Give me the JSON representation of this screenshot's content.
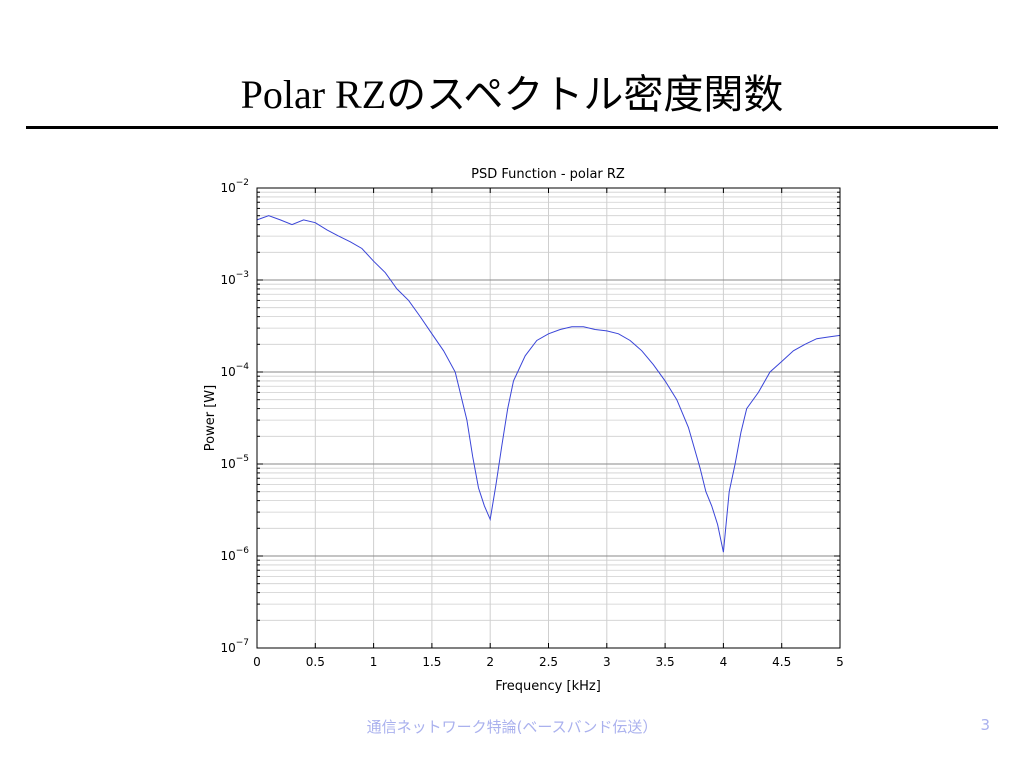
{
  "slide": {
    "title": "Polar RZのスペクトル密度関数",
    "footer": "通信ネットワーク特論(ベースバンド伝送）",
    "page_number": "3"
  },
  "colors": {
    "series": "#3a45d8",
    "grid": "#cfcfcf",
    "axis": "#000000",
    "footer": "#aab1ee"
  },
  "chart_data": {
    "type": "line",
    "title": "PSD Function - polar RZ",
    "xlabel": "Frequency [kHz]",
    "ylabel": "Power [W]",
    "xlim": [
      0,
      5
    ],
    "ylim": [
      1e-07,
      0.01
    ],
    "yscale": "log",
    "grid": true,
    "x_ticks": [
      "0",
      "0.5",
      "1",
      "1.5",
      "2",
      "2.5",
      "3",
      "3.5",
      "4",
      "4.5",
      "5"
    ],
    "y_ticks": [
      {
        "base": "10",
        "exp": "−2"
      },
      {
        "base": "10",
        "exp": "−3"
      },
      {
        "base": "10",
        "exp": "−4"
      },
      {
        "base": "10",
        "exp": "−5"
      },
      {
        "base": "10",
        "exp": "−6"
      },
      {
        "base": "10",
        "exp": "−7"
      }
    ],
    "series": [
      {
        "x": [
          0,
          0.1,
          0.2,
          0.3,
          0.4,
          0.5,
          0.6,
          0.7,
          0.8,
          0.9,
          1.0,
          1.1,
          1.2,
          1.3,
          1.4,
          1.5,
          1.6,
          1.7,
          1.8,
          1.85,
          1.9,
          1.95,
          2.0,
          2.05,
          2.1,
          2.15,
          2.2,
          2.3,
          2.4,
          2.5,
          2.6,
          2.7,
          2.8,
          2.9,
          3.0,
          3.1,
          3.2,
          3.3,
          3.4,
          3.5,
          3.6,
          3.7,
          3.8,
          3.85,
          3.9,
          3.95,
          4.0,
          4.05,
          4.1,
          4.15,
          4.2,
          4.3,
          4.4,
          4.5,
          4.6,
          4.7,
          4.8,
          4.9,
          5.0
        ],
        "y": [
          0.0045,
          0.005,
          0.0045,
          0.004,
          0.0045,
          0.0042,
          0.0035,
          0.003,
          0.0026,
          0.0022,
          0.0016,
          0.0012,
          0.0008,
          0.0006,
          0.0004,
          0.00026,
          0.00017,
          0.0001,
          3e-05,
          1.2e-05,
          5.5e-06,
          3.5e-06,
          2.5e-06,
          6e-06,
          1.6e-05,
          4e-05,
          8e-05,
          0.00015,
          0.00022,
          0.00026,
          0.00029,
          0.00031,
          0.00031,
          0.00029,
          0.00028,
          0.00026,
          0.00022,
          0.00017,
          0.00012,
          8e-05,
          5e-05,
          2.5e-05,
          9e-06,
          5e-06,
          3.5e-06,
          2.2e-06,
          1.1e-06,
          5e-06,
          1e-05,
          2.2e-05,
          4e-05,
          6e-05,
          0.0001,
          0.00013,
          0.00017,
          0.0002,
          0.00023,
          0.00024,
          0.00025
        ]
      }
    ]
  }
}
